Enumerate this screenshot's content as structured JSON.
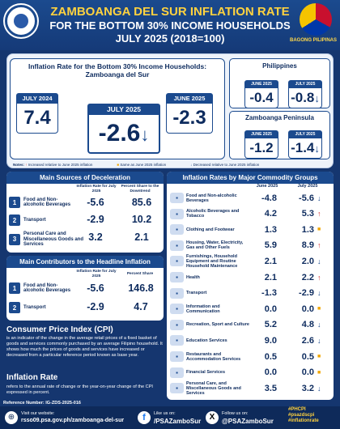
{
  "header": {
    "line1": "ZAMBOANGA DEL SUR INFLATION RATE",
    "line2": "FOR THE BOTTOM 30% INCOME HOUSEHOLDS",
    "line3": "JULY 2025 (2018=100)",
    "brand": "BAGONG PILIPINAS"
  },
  "summary": {
    "title": "Inflation Rate for the Bottom 30% Income Households: Zamboanga del Sur",
    "july2024": {
      "label": "JULY 2024",
      "value": "7.4"
    },
    "july2025": {
      "label": "JULY 2025",
      "value": "-2.6"
    },
    "june2025": {
      "label": "JUNE 2025",
      "value": "-2.3"
    },
    "philippines": {
      "title": "Philippines",
      "june_label": "JUNE 2025",
      "june": "-0.4",
      "july_label": "JULY 2025",
      "july": "-0.8"
    },
    "peninsula": {
      "title": "Zamboanga Peninsula",
      "june_label": "JUNE 2025",
      "june": "-1.2",
      "july_label": "JULY 2025",
      "july": "-1.4"
    },
    "notes": {
      "n1": "Increased relative to June 2025 inflation",
      "n2": "Same as June 2025 inflation",
      "n3": "Decreased relative to June 2025 inflation",
      "label": "Notes:"
    }
  },
  "deceleration": {
    "title": "Main Sources of Deceleration",
    "col1": "Inflation Rate for July 2025",
    "col2": "Percent Share to the Downtrend",
    "rows": [
      {
        "n": "1",
        "label": "Food and Non-alcoholic Beverages",
        "rate": "-5.6",
        "share": "85.6"
      },
      {
        "n": "2",
        "label": "Transport",
        "rate": "-2.9",
        "share": "10.2"
      },
      {
        "n": "3",
        "label": "Personal Care and Miscellaneous Goods and Services",
        "rate": "3.2",
        "share": "2.1"
      }
    ]
  },
  "contributors": {
    "title": "Main Contributors to the Headline Inflation",
    "col1": "Inflation Rate for July 2025",
    "col2": "Percent Share",
    "rows": [
      {
        "n": "1",
        "label": "Food and Non-alcoholic Beverages",
        "rate": "-5.6",
        "share": "146.8"
      },
      {
        "n": "2",
        "label": "Transport",
        "rate": "-2.9",
        "share": "4.7"
      }
    ]
  },
  "commodity": {
    "title": "Inflation Rates by Major Commodity Groups",
    "col_june": "June 2025",
    "col_july": "July 2025",
    "rows": [
      {
        "label": "Food and Non-alcoholic Beverages",
        "june": "-4.8",
        "july": "-5.6",
        "dir": "down"
      },
      {
        "label": "Alcoholic Beverages and Tobacco",
        "june": "4.2",
        "july": "5.3",
        "dir": "up"
      },
      {
        "label": "Clothing and Footwear",
        "june": "1.3",
        "july": "1.3",
        "dir": "same"
      },
      {
        "label": "Housing, Water, Electricity, Gas and Other Fuels",
        "june": "5.9",
        "july": "8.9",
        "dir": "up"
      },
      {
        "label": "Furnishings, Household Equipment and Routine Household Maintenance",
        "june": "2.1",
        "july": "2.0",
        "dir": "down"
      },
      {
        "label": "Health",
        "june": "2.1",
        "july": "2.2",
        "dir": "up"
      },
      {
        "label": "Transport",
        "june": "-1.3",
        "july": "-2.9",
        "dir": "down"
      },
      {
        "label": "Information and Communication",
        "june": "0.0",
        "july": "0.0",
        "dir": "same"
      },
      {
        "label": "Recreation, Sport and Culture",
        "june": "5.2",
        "july": "4.8",
        "dir": "down"
      },
      {
        "label": "Education Services",
        "june": "9.0",
        "july": "2.6",
        "dir": "down"
      },
      {
        "label": "Restaurants and Accommodation Services",
        "june": "0.5",
        "july": "0.5",
        "dir": "same"
      },
      {
        "label": "Financial Services",
        "june": "0.0",
        "july": "0.0",
        "dir": "same"
      },
      {
        "label": "Personal Care, and Miscellaneous Goods and Services",
        "june": "3.5",
        "july": "3.2",
        "dir": "down"
      }
    ]
  },
  "cpi": {
    "title": "Consumer Price Index (CPI)",
    "text": "is an indicator of the change in the average retail prices of a fixed basket of goods and services commonly purchased by an average Filipino household. It shows how much the prices of goods and services have increased or decreased from a particular reference period known as base year.",
    "inf_title": "Inflation Rate",
    "inf_text": "refers to the annual rate of change or the year-on-year change of the CPI expressed in percent."
  },
  "footer": {
    "ref": "Reference Number: IG-ZDS-2025-016",
    "visit": "Visit our website:",
    "url": "rsso09.psa.gov.ph/zamboanga-del-sur",
    "fb_label": "Like us on:",
    "fb": "/PSAZamboSur",
    "x_label": "Follow us on:",
    "x": "@PSAZamboSur",
    "tags": "#PHCPI\n#psazdscpi\n#inflationrate"
  },
  "colors": {
    "navy": "#15366f",
    "accent": "#ffd23f",
    "up": "#d32f2f",
    "down": "#1b4a8e"
  }
}
